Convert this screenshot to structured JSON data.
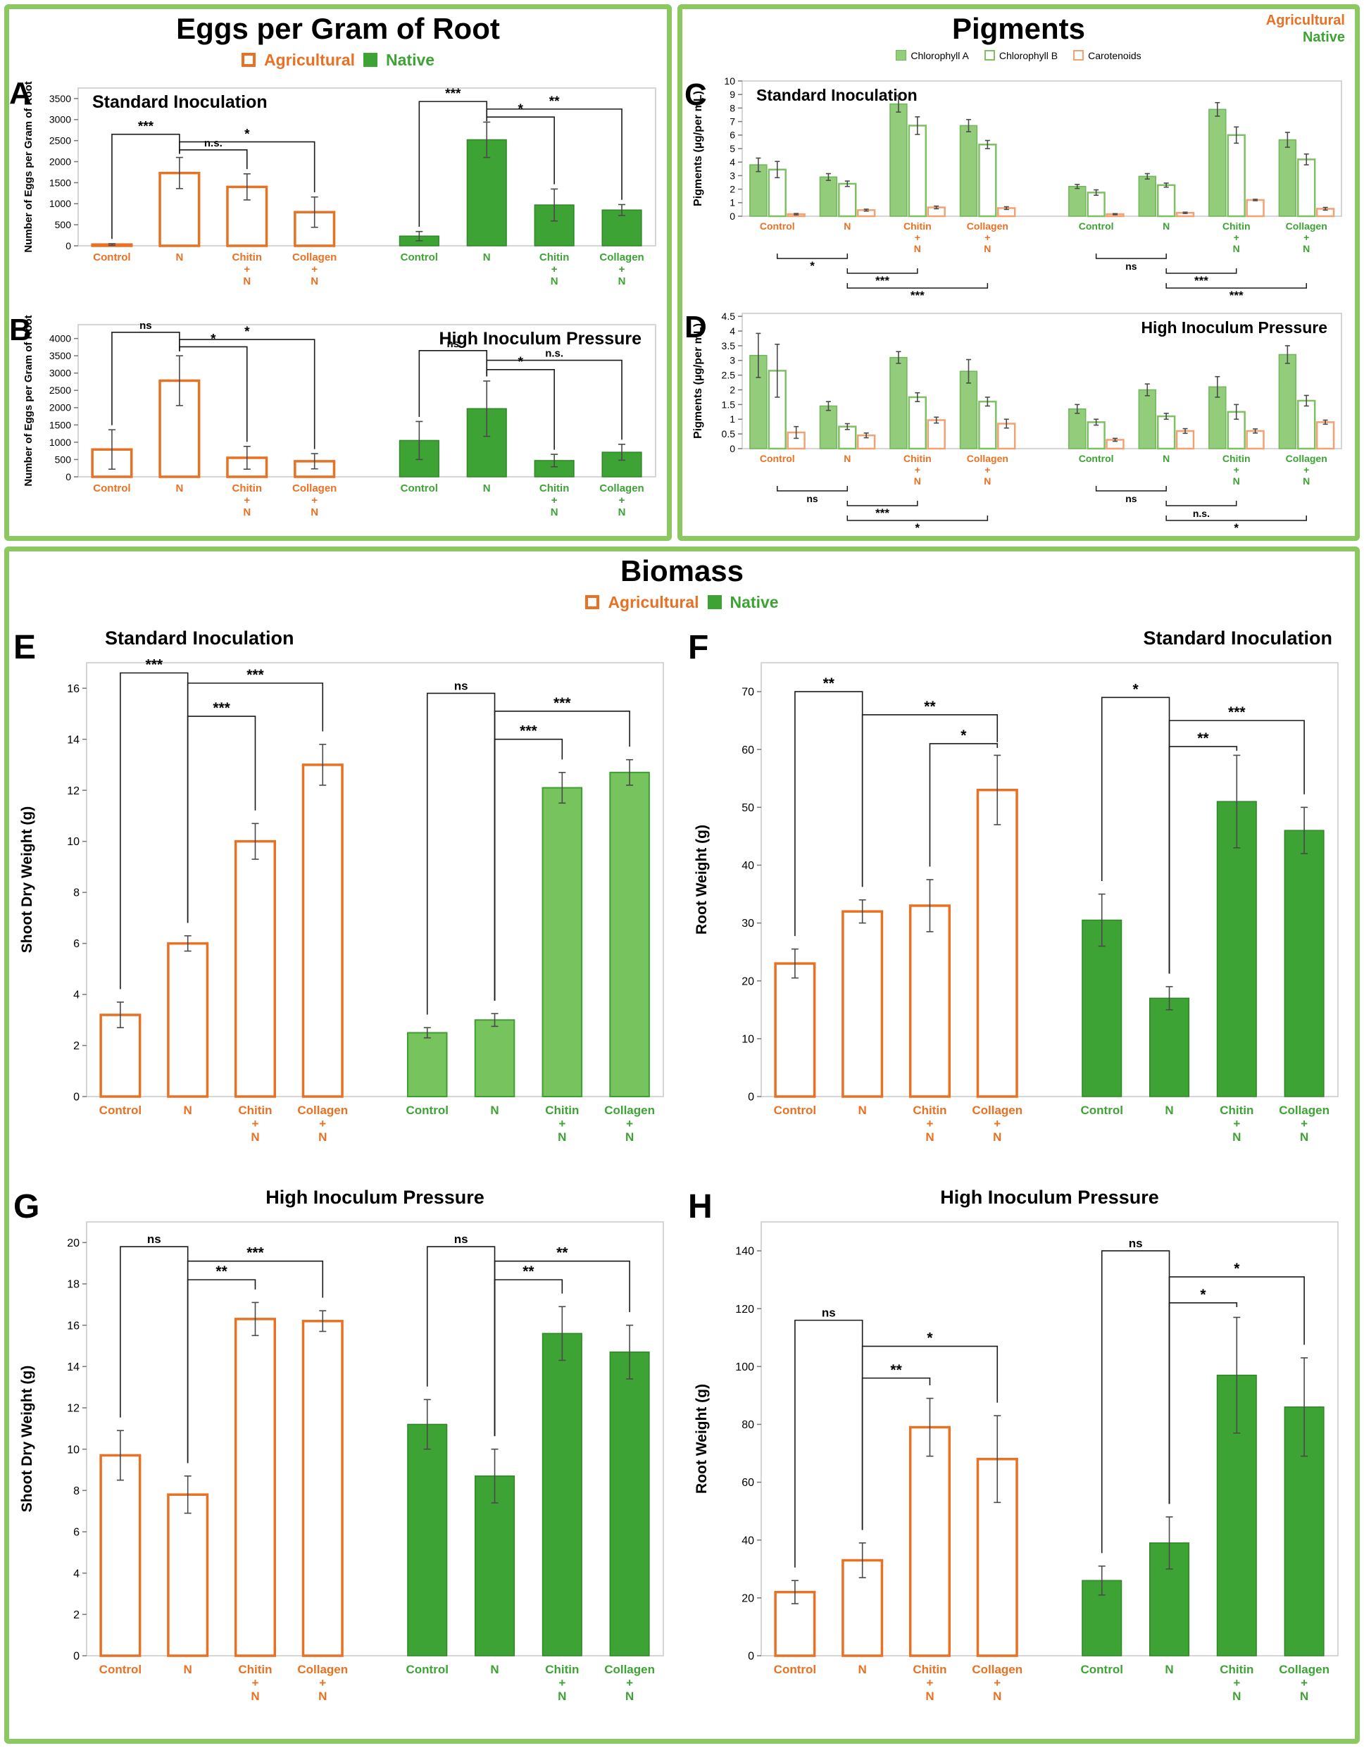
{
  "legend": {
    "agricultural": "Agricultural",
    "native": "Native"
  },
  "sections": {
    "eggs": {
      "title": "Eggs per Gram of Root"
    },
    "pigments": {
      "title": "Pigments",
      "corner": {
        "agricultural": "Agricultural",
        "native": "Native"
      },
      "series_legend": [
        "Chlorophyll A",
        "Chlorophyll B",
        "Carotenoids"
      ]
    },
    "biomass": {
      "title": "Biomass"
    }
  },
  "styles": {
    "agri": {
      "fill": "#ffffff",
      "stroke": "#E87124",
      "sw": 3.5
    },
    "native": {
      "fill": "#3EA335",
      "stroke": "#2E8826",
      "sw": 1.5
    },
    "native_light": {
      "fill": "#77C35D",
      "stroke": "#3F9E33",
      "sw": 2
    },
    "chla": {
      "fill": "#93CD7C",
      "stroke": "#70B65A",
      "sw": 1.5
    },
    "chlb": {
      "fill": "#ffffff",
      "stroke": "#7DC163",
      "sw": 2.5
    },
    "car": {
      "fill": "#ffffff",
      "stroke": "#F2A173",
      "sw": 2.5
    },
    "agri_text": "#E87124",
    "native_text": "#3EA335",
    "bracket": "#1a1a1a",
    "error": "#4a4a4a",
    "axis_border": "#c9c9c9"
  },
  "chart_data": [
    {
      "id": "A",
      "panel": "A",
      "type": "bar",
      "title": "Standard Inoculation",
      "ylabel": "Number of Eggs per Gram of Root",
      "ymax": 3750,
      "yticks": [
        0,
        500,
        1000,
        1500,
        2000,
        2500,
        3000,
        3500
      ],
      "groups": [
        "Control",
        "N",
        "Chitin|+|N",
        "Collagen|+|N",
        "Control",
        "N",
        "Chitin|+|N",
        "Collagen|+|N"
      ],
      "group_colors": [
        "agri",
        "agri",
        "agri",
        "agri",
        "native",
        "native",
        "native",
        "native"
      ],
      "bar_styles": [
        "agri",
        "agri",
        "agri",
        "agri",
        "native",
        "native",
        "native",
        "native"
      ],
      "values": [
        30,
        1730,
        1400,
        800,
        230,
        2520,
        970,
        850
      ],
      "errors": [
        20,
        370,
        310,
        360,
        110,
        420,
        380,
        130
      ],
      "brackets": [
        {
          "a": 0,
          "b": 1,
          "y": 2650,
          "label": "***"
        },
        {
          "a": 1,
          "b": 2,
          "y": 2280,
          "label": "n.s."
        },
        {
          "a": 1,
          "b": 3,
          "y": 2470,
          "label": "*"
        },
        {
          "a": 4,
          "b": 5,
          "y": 3430,
          "label": "***"
        },
        {
          "a": 5,
          "b": 6,
          "y": 3060,
          "label": "*"
        },
        {
          "a": 5,
          "b": 7,
          "y": 3250,
          "label": "**"
        }
      ]
    },
    {
      "id": "B",
      "panel": "B",
      "type": "bar",
      "title": "High Inoculum Pressure",
      "ylabel": "Number of Eggs per Gram of Root",
      "ymax": 4400,
      "yticks": [
        0,
        500,
        1000,
        1500,
        2000,
        2500,
        3000,
        3500,
        4000
      ],
      "groups": [
        "Control",
        "N",
        "Chitin|+|N",
        "Collagen|+|N",
        "Control",
        "N",
        "Chitin|+|N",
        "Collagen|+|N"
      ],
      "group_colors": [
        "agri",
        "agri",
        "agri",
        "agri",
        "native",
        "native",
        "native",
        "native"
      ],
      "bar_styles": [
        "agri",
        "agri",
        "agri",
        "agri",
        "native",
        "native",
        "native",
        "native"
      ],
      "values": [
        790,
        2780,
        550,
        450,
        1050,
        1970,
        470,
        710
      ],
      "errors": [
        570,
        720,
        330,
        220,
        550,
        800,
        180,
        230
      ],
      "brackets": [
        {
          "a": 0,
          "b": 1,
          "y": 4180,
          "label": "ns"
        },
        {
          "a": 1,
          "b": 2,
          "y": 3760,
          "label": "*"
        },
        {
          "a": 1,
          "b": 3,
          "y": 3970,
          "label": "*"
        },
        {
          "a": 4,
          "b": 5,
          "y": 3650,
          "label": "ns"
        },
        {
          "a": 5,
          "b": 6,
          "y": 3100,
          "label": "*"
        },
        {
          "a": 5,
          "b": 7,
          "y": 3370,
          "label": "n.s."
        }
      ]
    },
    {
      "id": "C",
      "panel": "C",
      "type": "grouped-bar",
      "title": "Standard Inoculation",
      "ylabel": "Pigments (µg/per mL)",
      "ymax": 10,
      "yticks": [
        0,
        1,
        2,
        3,
        4,
        5,
        6,
        7,
        8,
        9,
        10
      ],
      "groups": [
        "Control",
        "N",
        "Chitin|+|N",
        "Collagen|+|N",
        "Control",
        "N",
        "Chitin|+|N",
        "Collagen|+|N"
      ],
      "group_colors": [
        "agri",
        "agri",
        "agri",
        "agri",
        "native",
        "native",
        "native",
        "native"
      ],
      "series": [
        {
          "name": "Chlorophyll A",
          "style": "chla",
          "values": [
            3.8,
            2.9,
            8.3,
            6.7,
            2.2,
            2.95,
            7.9,
            5.65
          ],
          "errors": [
            0.5,
            0.25,
            0.6,
            0.45,
            0.15,
            0.2,
            0.5,
            0.55
          ]
        },
        {
          "name": "Chlorophyll B",
          "style": "chlb",
          "values": [
            3.45,
            2.4,
            6.7,
            5.3,
            1.75,
            2.3,
            6.0,
            4.2
          ],
          "errors": [
            0.6,
            0.2,
            0.65,
            0.3,
            0.2,
            0.15,
            0.6,
            0.4
          ]
        },
        {
          "name": "Carotenoids",
          "style": "car",
          "values": [
            0.15,
            0.45,
            0.65,
            0.6,
            0.15,
            0.25,
            1.2,
            0.55
          ],
          "errors": [
            0.05,
            0.07,
            0.1,
            0.1,
            0.04,
            0.05,
            0.05,
            0.1
          ]
        }
      ],
      "below_brackets": [
        {
          "a": 0,
          "b": 1,
          "level": 0,
          "label": "*"
        },
        {
          "a": 1,
          "b": 2,
          "level": 1,
          "label": "***"
        },
        {
          "a": 1,
          "b": 3,
          "level": 2,
          "label": "***"
        },
        {
          "a": 4,
          "b": 5,
          "level": 0,
          "label": "ns"
        },
        {
          "a": 5,
          "b": 6,
          "level": 1,
          "label": "***"
        },
        {
          "a": 5,
          "b": 7,
          "level": 2,
          "label": "***"
        }
      ]
    },
    {
      "id": "D",
      "panel": "D",
      "type": "grouped-bar",
      "title": "High Inoculum Pressure",
      "ylabel": "Pigments (µg/per mL)",
      "ymax": 4.6,
      "yticks": [
        0,
        0.5,
        1,
        1.5,
        2,
        2.5,
        3,
        3.5,
        4,
        4.5
      ],
      "groups": [
        "Control",
        "N",
        "Chitin|+|N",
        "Collagen|+|N",
        "Control",
        "N",
        "Chitin|+|N",
        "Collagen|+|N"
      ],
      "group_colors": [
        "agri",
        "agri",
        "agri",
        "agri",
        "native",
        "native",
        "native",
        "native"
      ],
      "series": [
        {
          "name": "Chlorophyll A",
          "style": "chla",
          "values": [
            3.17,
            1.45,
            3.1,
            2.63,
            1.35,
            2.0,
            2.1,
            3.2
          ],
          "errors": [
            0.75,
            0.15,
            0.2,
            0.4,
            0.15,
            0.2,
            0.35,
            0.3
          ]
        },
        {
          "name": "Chlorophyll B",
          "style": "chlb",
          "values": [
            2.65,
            0.75,
            1.75,
            1.6,
            0.9,
            1.1,
            1.25,
            1.63
          ],
          "errors": [
            0.9,
            0.1,
            0.15,
            0.15,
            0.1,
            0.1,
            0.25,
            0.18
          ]
        },
        {
          "name": "Carotenoids",
          "style": "car",
          "values": [
            0.55,
            0.45,
            0.97,
            0.85,
            0.3,
            0.6,
            0.6,
            0.9
          ],
          "errors": [
            0.2,
            0.08,
            0.1,
            0.15,
            0.05,
            0.08,
            0.07,
            0.07
          ]
        }
      ],
      "below_brackets": [
        {
          "a": 0,
          "b": 1,
          "level": 0,
          "label": "ns"
        },
        {
          "a": 1,
          "b": 2,
          "level": 1,
          "label": "***"
        },
        {
          "a": 1,
          "b": 3,
          "level": 2,
          "label": "*"
        },
        {
          "a": 4,
          "b": 5,
          "level": 0,
          "label": "ns"
        },
        {
          "a": 5,
          "b": 6,
          "level": 1,
          "label": "n.s."
        },
        {
          "a": 5,
          "b": 7,
          "level": 2,
          "label": "*"
        }
      ]
    },
    {
      "id": "E",
      "panel": "E",
      "type": "bar",
      "title": "Standard Inoculation",
      "ylabel": "Shoot Dry Weight (g)",
      "ymax": 17,
      "yticks": [
        0,
        2,
        4,
        6,
        8,
        10,
        12,
        14,
        16
      ],
      "groups": [
        "Control",
        "N",
        "Chitin|+|N",
        "Collagen|+|N",
        "Control",
        "N",
        "Chitin|+|N",
        "Collagen|+|N"
      ],
      "group_colors": [
        "agri",
        "agri",
        "agri",
        "agri",
        "native",
        "native",
        "native",
        "native"
      ],
      "bar_styles": [
        "agri",
        "agri",
        "agri",
        "agri",
        "native_light",
        "native_light",
        "native_light",
        "native_light"
      ],
      "values": [
        3.2,
        6.0,
        10.0,
        13.0,
        2.5,
        3.0,
        12.1,
        12.7
      ],
      "errors": [
        0.5,
        0.3,
        0.7,
        0.8,
        0.2,
        0.25,
        0.6,
        0.5
      ],
      "brackets": [
        {
          "a": 0,
          "b": 1,
          "y": 16.6,
          "label": "***"
        },
        {
          "a": 1,
          "b": 2,
          "y": 14.9,
          "label": "***"
        },
        {
          "a": 1,
          "b": 3,
          "y": 16.2,
          "label": "***"
        },
        {
          "a": 4,
          "b": 5,
          "y": 15.8,
          "label": "ns"
        },
        {
          "a": 5,
          "b": 6,
          "y": 14.0,
          "label": "***"
        },
        {
          "a": 5,
          "b": 7,
          "y": 15.1,
          "label": "***"
        }
      ]
    },
    {
      "id": "F",
      "panel": "F",
      "type": "bar",
      "title": "Standard Inoculation",
      "ylabel": "Root Weight (g)",
      "ymax": 75,
      "yticks": [
        0,
        10,
        20,
        30,
        40,
        50,
        60,
        70
      ],
      "groups": [
        "Control",
        "N",
        "Chitin|+|N",
        "Collagen|+|N",
        "Control",
        "N",
        "Chitin|+|N",
        "Collagen|+|N"
      ],
      "group_colors": [
        "agri",
        "agri",
        "agri",
        "agri",
        "native",
        "native",
        "native",
        "native"
      ],
      "bar_styles": [
        "agri",
        "agri",
        "agri",
        "agri",
        "native",
        "native",
        "native",
        "native"
      ],
      "values": [
        23,
        32,
        33,
        53,
        30.5,
        17,
        51,
        46
      ],
      "errors": [
        2.5,
        2,
        4.5,
        6,
        4.5,
        2,
        8,
        4
      ],
      "brackets": [
        {
          "a": 0,
          "b": 1,
          "y": 70,
          "label": "**"
        },
        {
          "a": 1,
          "b": 3,
          "y": 66,
          "label": "**"
        },
        {
          "a": 2,
          "b": 3,
          "y": 61,
          "label": "*"
        },
        {
          "a": 4,
          "b": 5,
          "y": 69,
          "label": "*"
        },
        {
          "a": 5,
          "b": 6,
          "y": 60.5,
          "label": "**"
        },
        {
          "a": 5,
          "b": 7,
          "y": 65,
          "label": "***"
        }
      ]
    },
    {
      "id": "G",
      "panel": "G",
      "type": "bar",
      "title": "High Inoculum Pressure",
      "ylabel": "Shoot Dry Weight (g)",
      "ymax": 21,
      "yticks": [
        0,
        2,
        4,
        6,
        8,
        10,
        12,
        14,
        16,
        18,
        20
      ],
      "groups": [
        "Control",
        "N",
        "Chitin|+|N",
        "Collagen|+|N",
        "Control",
        "N",
        "Chitin|+|N",
        "Collagen|+|N"
      ],
      "group_colors": [
        "agri",
        "agri",
        "agri",
        "agri",
        "native",
        "native",
        "native",
        "native"
      ],
      "bar_styles": [
        "agri",
        "agri",
        "agri",
        "agri",
        "native",
        "native",
        "native",
        "native"
      ],
      "values": [
        9.7,
        7.8,
        16.3,
        16.2,
        11.2,
        8.7,
        15.6,
        14.7
      ],
      "errors": [
        1.2,
        0.9,
        0.8,
        0.5,
        1.2,
        1.3,
        1.3,
        1.3
      ],
      "brackets": [
        {
          "a": 0,
          "b": 1,
          "y": 19.8,
          "label": "ns"
        },
        {
          "a": 1,
          "b": 2,
          "y": 18.2,
          "label": "**"
        },
        {
          "a": 1,
          "b": 3,
          "y": 19.1,
          "label": "***"
        },
        {
          "a": 4,
          "b": 5,
          "y": 19.8,
          "label": "ns"
        },
        {
          "a": 5,
          "b": 6,
          "y": 18.2,
          "label": "**"
        },
        {
          "a": 5,
          "b": 7,
          "y": 19.1,
          "label": "**"
        }
      ]
    },
    {
      "id": "H",
      "panel": "H",
      "type": "bar",
      "title": "High Inoculum Pressure",
      "ylabel": "Root Weight (g)",
      "ymax": 150,
      "yticks": [
        0,
        20,
        40,
        60,
        80,
        100,
        120,
        140
      ],
      "groups": [
        "Control",
        "N",
        "Chitin|+|N",
        "Collagen|+|N",
        "Control",
        "N",
        "Chitin|+|N",
        "Collagen|+|N"
      ],
      "group_colors": [
        "agri",
        "agri",
        "agri",
        "agri",
        "native",
        "native",
        "native",
        "native"
      ],
      "bar_styles": [
        "agri",
        "agri",
        "agri",
        "agri",
        "native",
        "native",
        "native",
        "native"
      ],
      "values": [
        22,
        33,
        79,
        68,
        26,
        39,
        97,
        86
      ],
      "errors": [
        4,
        6,
        10,
        15,
        5,
        9,
        20,
        17
      ],
      "brackets": [
        {
          "a": 0,
          "b": 1,
          "y": 116,
          "label": "ns"
        },
        {
          "a": 1,
          "b": 2,
          "y": 96,
          "label": "**"
        },
        {
          "a": 1,
          "b": 3,
          "y": 107,
          "label": "*"
        },
        {
          "a": 4,
          "b": 5,
          "y": 140,
          "label": "ns"
        },
        {
          "a": 5,
          "b": 6,
          "y": 122,
          "label": "*"
        },
        {
          "a": 5,
          "b": 7,
          "y": 131,
          "label": "*"
        }
      ]
    }
  ]
}
